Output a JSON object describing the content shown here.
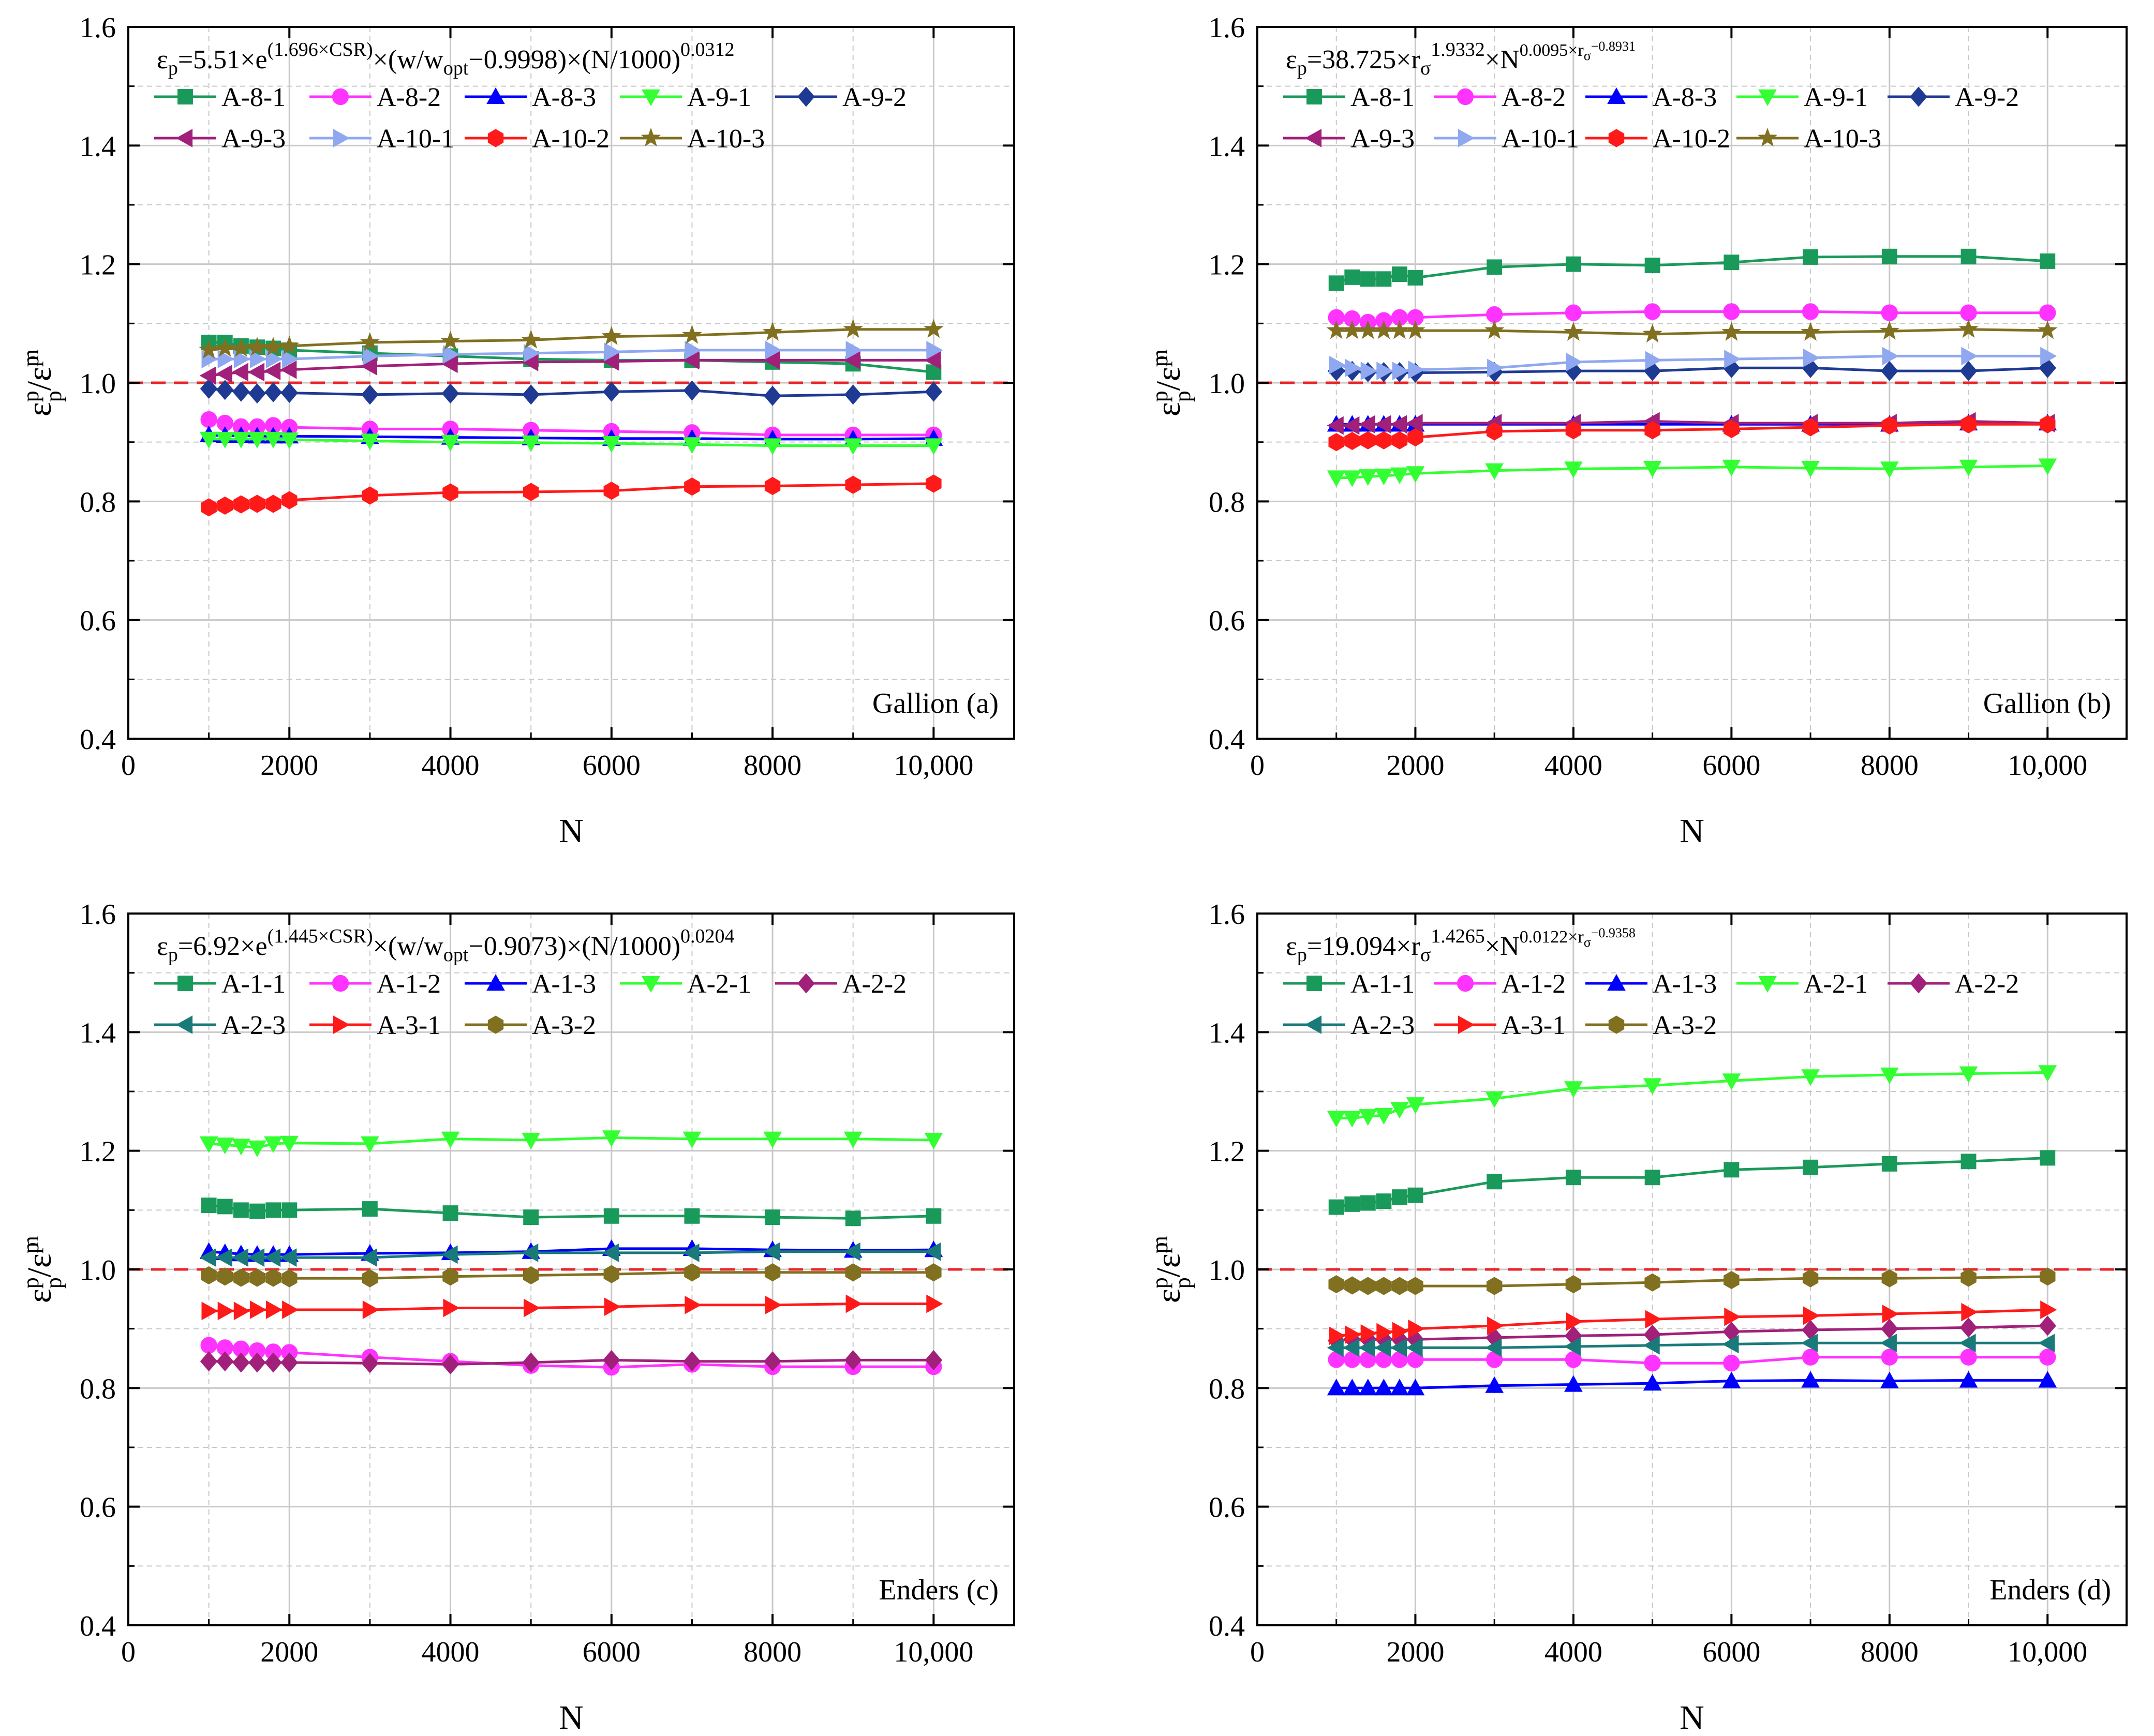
{
  "figure": {
    "panels": [
      "a",
      "b",
      "c",
      "d"
    ]
  },
  "style": {
    "grid_color": "#c8c8c8",
    "reference_line_color": "#e8262a",
    "axis_color": "#000000"
  },
  "chart_data": [
    {
      "id": "a",
      "type": "line",
      "formula": {
        "base": "εp=5.51×e",
        "exp1": "(1.696×CSR)",
        "mid": "×(w/w",
        "sub": "opt",
        "mid2": "−0.9998)×(N/1000)",
        "exp2": "0.0312"
      },
      "panel_label": "Gallion  (a)",
      "xlabel": "N",
      "ylabel": "εpp/εpm",
      "xlim": [
        0,
        11000
      ],
      "ylim": [
        0.4,
        1.6
      ],
      "x_ticks": [
        0,
        2000,
        4000,
        6000,
        8000,
        10000
      ],
      "x_tick_labels": [
        "0",
        "2000",
        "4000",
        "6000",
        "8000",
        "10,000"
      ],
      "y_ticks": [
        0.4,
        0.6,
        0.8,
        1.0,
        1.2,
        1.4,
        1.6
      ],
      "y_tick_labels": [
        "0.4",
        "0.6",
        "0.8",
        "1.0",
        "1.2",
        "1.4",
        "1.6"
      ],
      "reference_line": 1.0,
      "x": [
        1000,
        1200,
        1400,
        1600,
        1800,
        2000,
        3000,
        4000,
        5000,
        6000,
        7000,
        8000,
        9000,
        10000
      ],
      "series": [
        {
          "name": "A-8-1",
          "color": "#1a9a5a",
          "marker": "square",
          "values": [
            1.068,
            1.068,
            1.062,
            1.06,
            1.058,
            1.055,
            1.05,
            1.045,
            1.04,
            1.038,
            1.038,
            1.035,
            1.032,
            1.018
          ]
        },
        {
          "name": "A-8-2",
          "color": "#ff33ff",
          "marker": "circle",
          "values": [
            0.938,
            0.932,
            0.926,
            0.926,
            0.928,
            0.925,
            0.922,
            0.922,
            0.92,
            0.918,
            0.916,
            0.912,
            0.912,
            0.912
          ]
        },
        {
          "name": "A-8-3",
          "color": "#0000ff",
          "marker": "triangle-up",
          "values": [
            0.912,
            0.911,
            0.911,
            0.91,
            0.91,
            0.91,
            0.909,
            0.908,
            0.907,
            0.906,
            0.906,
            0.905,
            0.905,
            0.906
          ]
        },
        {
          "name": "A-9-1",
          "color": "#33ff33",
          "marker": "triangle-down",
          "values": [
            0.905,
            0.905,
            0.905,
            0.905,
            0.905,
            0.904,
            0.902,
            0.9,
            0.899,
            0.898,
            0.896,
            0.894,
            0.894,
            0.894
          ]
        },
        {
          "name": "A-9-2",
          "color": "#1f3a93",
          "marker": "diamond",
          "values": [
            0.99,
            0.988,
            0.985,
            0.982,
            0.984,
            0.983,
            0.98,
            0.982,
            0.98,
            0.985,
            0.987,
            0.978,
            0.98,
            0.985
          ]
        },
        {
          "name": "A-9-3",
          "color": "#a0207a",
          "marker": "triangle-left",
          "values": [
            1.012,
            1.015,
            1.018,
            1.018,
            1.02,
            1.022,
            1.028,
            1.032,
            1.035,
            1.036,
            1.038,
            1.038,
            1.038,
            1.038
          ]
        },
        {
          "name": "A-10-1",
          "color": "#8fa8f0",
          "marker": "triangle-right",
          "values": [
            1.04,
            1.04,
            1.04,
            1.04,
            1.04,
            1.04,
            1.045,
            1.048,
            1.05,
            1.052,
            1.055,
            1.055,
            1.055,
            1.055
          ]
        },
        {
          "name": "A-10-2",
          "color": "#ff1a1a",
          "marker": "hexagon",
          "values": [
            0.79,
            0.793,
            0.795,
            0.796,
            0.796,
            0.802,
            0.81,
            0.815,
            0.816,
            0.818,
            0.825,
            0.826,
            0.828,
            0.83
          ]
        },
        {
          "name": "A-10-3",
          "color": "#807020",
          "marker": "star",
          "values": [
            1.055,
            1.058,
            1.058,
            1.06,
            1.06,
            1.062,
            1.068,
            1.07,
            1.072,
            1.078,
            1.08,
            1.085,
            1.09,
            1.09
          ]
        }
      ]
    },
    {
      "id": "b",
      "type": "line",
      "formula": {
        "base": "εp=38.725×r",
        "sub1": "σ",
        "exp1": "1.9332",
        "mid": "×N",
        "exp2": "0.0095×r",
        "exp2sub": "σ",
        "exp2sup": "−0.8931"
      },
      "panel_label": "Gallion   (b)",
      "xlabel": "N",
      "ylabel": "εpp/εpm",
      "xlim": [
        0,
        11000
      ],
      "ylim": [
        0.4,
        1.6
      ],
      "x_ticks": [
        0,
        2000,
        4000,
        6000,
        8000,
        10000
      ],
      "x_tick_labels": [
        "0",
        "2000",
        "4000",
        "6000",
        "8000",
        "10,000"
      ],
      "y_ticks": [
        0.4,
        0.6,
        0.8,
        1.0,
        1.2,
        1.4,
        1.6
      ],
      "y_tick_labels": [
        "0.4",
        "0.6",
        "0.8",
        "1.0",
        "1.2",
        "1.4",
        "1.6"
      ],
      "reference_line": 1.0,
      "x": [
        1000,
        1200,
        1400,
        1600,
        1800,
        2000,
        3000,
        4000,
        5000,
        6000,
        7000,
        8000,
        9000,
        10000
      ],
      "series": [
        {
          "name": "A-8-1",
          "color": "#1a9a5a",
          "marker": "square",
          "values": [
            1.168,
            1.178,
            1.175,
            1.175,
            1.183,
            1.177,
            1.195,
            1.2,
            1.198,
            1.203,
            1.212,
            1.213,
            1.213,
            1.205
          ]
        },
        {
          "name": "A-8-2",
          "color": "#ff33ff",
          "marker": "circle",
          "values": [
            1.11,
            1.108,
            1.102,
            1.105,
            1.11,
            1.11,
            1.115,
            1.118,
            1.12,
            1.12,
            1.12,
            1.118,
            1.118,
            1.118
          ]
        },
        {
          "name": "A-8-3",
          "color": "#0000ff",
          "marker": "triangle-up",
          "values": [
            0.93,
            0.93,
            0.93,
            0.93,
            0.93,
            0.93,
            0.93,
            0.93,
            0.93,
            0.93,
            0.93,
            0.93,
            0.932,
            0.932
          ]
        },
        {
          "name": "A-9-1",
          "color": "#33ff33",
          "marker": "triangle-down",
          "values": [
            0.84,
            0.84,
            0.842,
            0.843,
            0.845,
            0.847,
            0.852,
            0.855,
            0.856,
            0.858,
            0.856,
            0.855,
            0.858,
            0.86
          ]
        },
        {
          "name": "A-9-2",
          "color": "#1f3a93",
          "marker": "diamond",
          "values": [
            1.02,
            1.02,
            1.018,
            1.018,
            1.018,
            1.017,
            1.018,
            1.02,
            1.02,
            1.025,
            1.025,
            1.02,
            1.02,
            1.025
          ]
        },
        {
          "name": "A-9-3",
          "color": "#a0207a",
          "marker": "triangle-left",
          "values": [
            0.928,
            0.928,
            0.93,
            0.93,
            0.93,
            0.932,
            0.932,
            0.932,
            0.935,
            0.932,
            0.932,
            0.932,
            0.935,
            0.932
          ]
        },
        {
          "name": "A-10-1",
          "color": "#8fa8f0",
          "marker": "triangle-right",
          "values": [
            1.03,
            1.025,
            1.02,
            1.02,
            1.02,
            1.022,
            1.025,
            1.035,
            1.038,
            1.04,
            1.042,
            1.045,
            1.045,
            1.045
          ]
        },
        {
          "name": "A-10-2",
          "color": "#ff1a1a",
          "marker": "hexagon",
          "values": [
            0.9,
            0.902,
            0.903,
            0.903,
            0.903,
            0.908,
            0.918,
            0.92,
            0.92,
            0.922,
            0.925,
            0.928,
            0.93,
            0.93
          ]
        },
        {
          "name": "A-10-3",
          "color": "#807020",
          "marker": "star",
          "values": [
            1.088,
            1.088,
            1.088,
            1.088,
            1.088,
            1.088,
            1.088,
            1.085,
            1.082,
            1.085,
            1.085,
            1.087,
            1.09,
            1.088
          ]
        }
      ]
    },
    {
      "id": "c",
      "type": "line",
      "formula": {
        "base": "εp=6.92×e",
        "exp1": "(1.445×CSR)",
        "mid": "×(w/w",
        "sub": "opt",
        "mid2": "−0.9073)×(N/1000)",
        "exp2": "0.0204"
      },
      "panel_label": "Enders    (c)",
      "xlabel": "N",
      "ylabel": "εpp/εpm",
      "xlim": [
        0,
        11000
      ],
      "ylim": [
        0.4,
        1.6
      ],
      "x_ticks": [
        0,
        2000,
        4000,
        6000,
        8000,
        10000
      ],
      "x_tick_labels": [
        "0",
        "2000",
        "4000",
        "6000",
        "8000",
        "10,000"
      ],
      "y_ticks": [
        0.4,
        0.6,
        0.8,
        1.0,
        1.2,
        1.4,
        1.6
      ],
      "y_tick_labels": [
        "0.4",
        "0.6",
        "0.8",
        "1.0",
        "1.2",
        "1.4",
        "1.6"
      ],
      "reference_line": 1.0,
      "x": [
        1000,
        1200,
        1400,
        1600,
        1800,
        2000,
        3000,
        4000,
        5000,
        6000,
        7000,
        8000,
        9000,
        10000
      ],
      "series": [
        {
          "name": "A-1-1",
          "color": "#1a9a5a",
          "marker": "square",
          "values": [
            1.108,
            1.106,
            1.1,
            1.098,
            1.1,
            1.1,
            1.102,
            1.095,
            1.088,
            1.09,
            1.09,
            1.088,
            1.086,
            1.09
          ]
        },
        {
          "name": "A-1-2",
          "color": "#ff33ff",
          "marker": "circle",
          "values": [
            0.872,
            0.868,
            0.866,
            0.863,
            0.861,
            0.86,
            0.852,
            0.845,
            0.838,
            0.835,
            0.84,
            0.836,
            0.836,
            0.836
          ]
        },
        {
          "name": "A-1-3",
          "color": "#0000ff",
          "marker": "triangle-up",
          "values": [
            1.03,
            1.028,
            1.026,
            1.025,
            1.025,
            1.025,
            1.027,
            1.028,
            1.03,
            1.035,
            1.035,
            1.033,
            1.032,
            1.033
          ]
        },
        {
          "name": "A-2-1",
          "color": "#33ff33",
          "marker": "triangle-down",
          "values": [
            1.212,
            1.21,
            1.208,
            1.205,
            1.212,
            1.213,
            1.212,
            1.22,
            1.218,
            1.222,
            1.22,
            1.22,
            1.22,
            1.218
          ]
        },
        {
          "name": "A-2-2",
          "color": "#a0207a",
          "marker": "diamond",
          "values": [
            0.845,
            0.845,
            0.843,
            0.843,
            0.843,
            0.843,
            0.842,
            0.84,
            0.843,
            0.847,
            0.845,
            0.845,
            0.847,
            0.847
          ]
        },
        {
          "name": "A-2-3",
          "color": "#1a7a7a",
          "marker": "triangle-left",
          "values": [
            1.02,
            1.02,
            1.02,
            1.02,
            1.02,
            1.02,
            1.02,
            1.025,
            1.028,
            1.028,
            1.028,
            1.03,
            1.03,
            1.03
          ]
        },
        {
          "name": "A-3-1",
          "color": "#ff1a1a",
          "marker": "triangle-right",
          "values": [
            0.93,
            0.93,
            0.93,
            0.932,
            0.932,
            0.932,
            0.932,
            0.935,
            0.935,
            0.937,
            0.94,
            0.94,
            0.942,
            0.942
          ]
        },
        {
          "name": "A-3-2",
          "color": "#807020",
          "marker": "hexagon",
          "values": [
            0.99,
            0.988,
            0.986,
            0.986,
            0.986,
            0.985,
            0.985,
            0.988,
            0.99,
            0.992,
            0.995,
            0.995,
            0.995,
            0.995
          ]
        }
      ]
    },
    {
      "id": "d",
      "type": "line",
      "formula": {
        "base": "εp=19.094×r",
        "sub1": "σ",
        "exp1": "1.4265",
        "mid": "×N",
        "exp2": "0.0122×r",
        "exp2sub": "σ",
        "exp2sup": "−0.9358"
      },
      "panel_label": "Enders   (d)",
      "xlabel": "N",
      "ylabel": "εpp/εpm",
      "xlim": [
        0,
        11000
      ],
      "ylim": [
        0.4,
        1.6
      ],
      "x_ticks": [
        0,
        2000,
        4000,
        6000,
        8000,
        10000
      ],
      "x_tick_labels": [
        "0",
        "2000",
        "4000",
        "6000",
        "8000",
        "10,000"
      ],
      "y_ticks": [
        0.4,
        0.6,
        0.8,
        1.0,
        1.2,
        1.4,
        1.6
      ],
      "y_tick_labels": [
        "0.4",
        "0.6",
        "0.8",
        "1.0",
        "1.2",
        "1.4",
        "1.6"
      ],
      "reference_line": 1.0,
      "x": [
        1000,
        1200,
        1400,
        1600,
        1800,
        2000,
        3000,
        4000,
        5000,
        6000,
        7000,
        8000,
        9000,
        10000
      ],
      "series": [
        {
          "name": "A-1-1",
          "color": "#1a9a5a",
          "marker": "square",
          "values": [
            1.105,
            1.11,
            1.112,
            1.115,
            1.122,
            1.125,
            1.148,
            1.155,
            1.155,
            1.168,
            1.172,
            1.178,
            1.182,
            1.188
          ]
        },
        {
          "name": "A-1-2",
          "color": "#ff33ff",
          "marker": "circle",
          "values": [
            0.848,
            0.848,
            0.848,
            0.848,
            0.848,
            0.848,
            0.848,
            0.848,
            0.842,
            0.842,
            0.852,
            0.852,
            0.852,
            0.852
          ]
        },
        {
          "name": "A-1-3",
          "color": "#0000ff",
          "marker": "triangle-up",
          "values": [
            0.8,
            0.8,
            0.8,
            0.8,
            0.8,
            0.8,
            0.804,
            0.806,
            0.808,
            0.812,
            0.813,
            0.812,
            0.813,
            0.813
          ]
        },
        {
          "name": "A-2-1",
          "color": "#33ff33",
          "marker": "triangle-down",
          "values": [
            1.255,
            1.255,
            1.258,
            1.26,
            1.27,
            1.278,
            1.288,
            1.305,
            1.31,
            1.318,
            1.325,
            1.328,
            1.33,
            1.332
          ]
        },
        {
          "name": "A-2-2",
          "color": "#a0207a",
          "marker": "diamond",
          "values": [
            0.88,
            0.882,
            0.882,
            0.882,
            0.882,
            0.882,
            0.885,
            0.888,
            0.89,
            0.895,
            0.898,
            0.9,
            0.902,
            0.905
          ]
        },
        {
          "name": "A-2-3",
          "color": "#1a7a7a",
          "marker": "triangle-left",
          "values": [
            0.868,
            0.868,
            0.868,
            0.868,
            0.868,
            0.868,
            0.868,
            0.87,
            0.872,
            0.874,
            0.876,
            0.876,
            0.876,
            0.876
          ]
        },
        {
          "name": "A-3-1",
          "color": "#ff1a1a",
          "marker": "triangle-right",
          "values": [
            0.888,
            0.89,
            0.892,
            0.894,
            0.896,
            0.9,
            0.905,
            0.912,
            0.916,
            0.92,
            0.922,
            0.925,
            0.928,
            0.932
          ]
        },
        {
          "name": "A-3-2",
          "color": "#807020",
          "marker": "hexagon",
          "values": [
            0.975,
            0.973,
            0.972,
            0.972,
            0.972,
            0.972,
            0.972,
            0.975,
            0.978,
            0.982,
            0.985,
            0.985,
            0.986,
            0.988
          ]
        }
      ]
    }
  ]
}
